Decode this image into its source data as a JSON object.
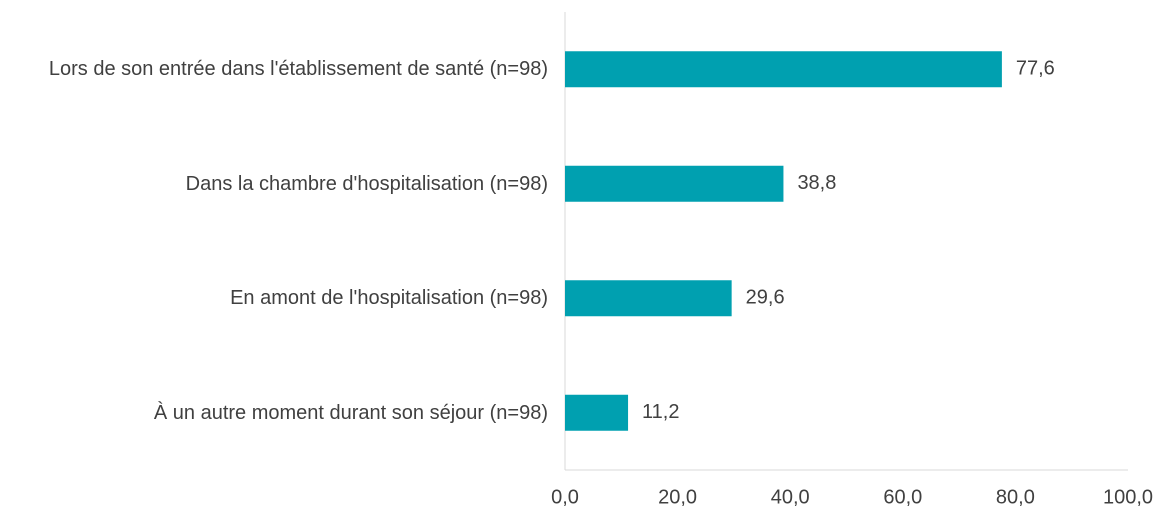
{
  "chart_data": {
    "type": "bar",
    "orientation": "horizontal",
    "categories": [
      "Lors de son entrée dans l'établissement de santé (n=98)",
      "Dans la chambre d'hospitalisation (n=98)",
      "En amont de l'hospitalisation (n=98)",
      "À un autre moment durant son séjour (n=98)"
    ],
    "values": [
      77.6,
      38.8,
      29.6,
      11.2
    ],
    "value_labels": [
      "77,6",
      "38,8",
      "29,6",
      "11,2"
    ],
    "color": "#00a0b0",
    "xlim": [
      0,
      100
    ],
    "xticks": [
      {
        "value": 0,
        "label": "0,0"
      },
      {
        "value": 20,
        "label": "20,0"
      },
      {
        "value": 40,
        "label": "40,0"
      },
      {
        "value": 60,
        "label": "60,0"
      },
      {
        "value": 80,
        "label": "80,0"
      },
      {
        "value": 100,
        "label": "100,0"
      }
    ],
    "grid": false
  }
}
